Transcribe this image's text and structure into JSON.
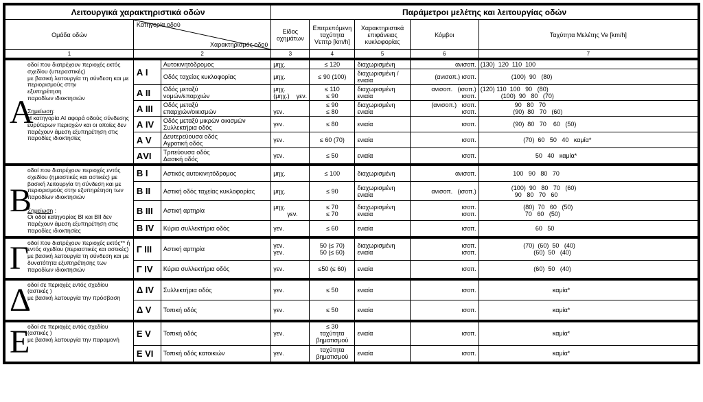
{
  "mainHeaders": {
    "left": "Λειτουργικά   χαρακτηριστικά   οδών",
    "right": "Παράμετροι   μελέτης   και   λειτουργίας   οδών"
  },
  "subHeaders": {
    "group": "Ομάδα οδών",
    "diagTop": "Κατηγορία οδού",
    "diagBot": "Χαρακτηρισμός οδού",
    "vehType": "Είδος οχημάτων",
    "maxSpeed": "Επιτρεπόμενη ταχύτητα",
    "maxSpeedSub": "Vεπτρ  [km/h]",
    "surface": "Χαρακτηριστικά επιφάνειας κυκλοφορίας",
    "nodes": "Κόμβοι",
    "designSpeed": "Ταχύτητα Μελέτης  Ve [km/h]"
  },
  "colNums": [
    "1",
    "2",
    "3",
    "4",
    "5",
    "6",
    "7"
  ],
  "groups": [
    {
      "letter": "Α",
      "desc": "οδοί που διατρέχουν περιοχές εκτός σχεδίου (υπεραστικές)<br>με βασική λειτουργία τη σύνδεση και με περιορισμούς στην<br>εξυπηρέτηση<br>παροδίων ιδιοκτησιών<br><br><u>Σημείωση</u>:<br>Η κατηγορία ΑΙ αφορά οδούς σύνδεσης ευρύτερων περιοχών και οι οποίες δεν παρέχουν άμεση εξυπηρέτηση στις παροδίες ιδιοκτησίες",
      "rows": [
        {
          "cat": "Α I",
          "char": "Αυτοκινητόδρομος",
          "v": "μηχ.",
          "sp": "≤ 120",
          "surf": "διαχωρισμένη",
          "node": "ανισοπ.",
          "speeds": "(130)  120  110  100"
        },
        {
          "cat": "",
          "char": "Οδός ταχείας κυκλοφορίας",
          "v": "μηχ.",
          "sp": "≤ 90 (100)",
          "surf": "διαχωρισμένη / ενιαία",
          "node": "(ανισοπ.)     ισοπ.",
          "speeds": "                  (100)  90   (80)"
        },
        {
          "cat": "Α II",
          "char": "Οδός μεταξύ<br>νομών/επαρχιών",
          "v": "μηχ.<br>(μηχ.)&nbsp;&nbsp;&nbsp;&nbsp;γεν.",
          "sp": "≤ 110<br>≤ 90",
          "surf": "διαχωρισμένη<br>ενιαία",
          "node": "ανισοπ.&nbsp;&nbsp;&nbsp;(ισοπ.)<br>ισοπ.",
          "speeds": "(120) 110  100   90   (80)\n            (100)  90   80   (70)",
          "tall": true
        },
        {
          "cat": "Α III",
          "char": "Οδός μεταξύ<br>επαρχιών/οικισμών",
          "v": "<br>γεν.",
          "sp": "≤ 90<br>≤ 80",
          "surf": "διαχωρισμένη<br>ενιαία",
          "node": "(ανισοπ.)&nbsp;&nbsp;&nbsp;ισοπ.<br>ισοπ.",
          "speeds": "                    90   80   70\n                   (90)  80   70   (60)",
          "tall": true
        },
        {
          "cat": "Α IV",
          "char": "Οδός μεταξύ μικρών οικισμών<br>Συλλεκτήρια οδός",
          "v": "γεν.",
          "sp": "≤ 80",
          "surf": "ενιαία",
          "node": "ισοπ.",
          "speeds": "                   (90)  80   70    60   (50)",
          "tall": true
        },
        {
          "cat": "Α V",
          "char": "Δευτερεύουσα οδός<br>Αγροτική οδός",
          "v": "γεν.",
          "sp": "≤ 60 (70)",
          "surf": "ενιαία",
          "node": "ισοπ.",
          "speeds": "                         (70)  60   50   40   καμία*",
          "tall": true
        },
        {
          "cat": "ΑVI",
          "char": "Τριτεύουσα οδός<br>Δασική οδός",
          "v": "γεν.",
          "sp": "≤ 50",
          "surf": "ενιαία",
          "node": "ισοπ.",
          "speeds": "                                50   40   καμία*",
          "tall": true
        }
      ]
    },
    {
      "letter": "Β",
      "desc": "οδοί που διατρέχουν περιοχές εντός σχεδίου (ημιαστικές και αστικές) με βασική λειτουργία τη σύνδεση και με περιορισμούς στην εξυπηρέτηση των παροδίων ιδιοκτησιών<br><br><u>Σημείωση</u> :<br>Οι οδοί κατηγορίας ΒΙ και ΒΙΙ δεν παρέχουν άμεση εξυπηρέτηση στις παροδίες ιδιοκτησίες",
      "rows": [
        {
          "cat": "Β I",
          "char": "Αστικός αυτοκινητόδρομος",
          "v": "μηχ.",
          "sp": "≤ 100",
          "surf": "διαχωρισμένη",
          "node": "ανισοπ.",
          "speeds": "                   100   90   80   70",
          "tall": true
        },
        {
          "cat": "Β II",
          "char": "Αστική οδός ταχείας κυκλοφορίας",
          "v": "μηχ.",
          "sp": "≤ 90",
          "surf": "διαχωρισμένη<br>ενιαία",
          "node": "ανισοπ.&nbsp;&nbsp;&nbsp;(ισοπ.)",
          "speeds": "                  (100)  90   80   70   (60)\n                    90   80   70   60",
          "tall": true
        },
        {
          "cat": "Β III",
          "char": "Αστική αρτηρία",
          "v": "μηχ.<br>&nbsp;&nbsp;&nbsp;&nbsp;&nbsp;&nbsp;&nbsp;&nbsp;γεν.",
          "sp": "≤ 70<br>≤ 70",
          "surf": "διαχωρισμένη<br>ενιαία",
          "node": "ισοπ.<br>ισοπ.",
          "speeds": "                         (80)  70   60   (50)\n                          70   60   (50)",
          "tall": true
        },
        {
          "cat": "Β IV",
          "char": "Κύρια συλλεκτήρια οδός",
          "v": "γεν.",
          "sp": "≤ 60",
          "surf": "ενιαία",
          "node": "ισοπ.",
          "speeds": "                                60   50",
          "tall": true
        }
      ]
    },
    {
      "letter": "Γ",
      "desc": "οδοί που διατρέχουν περιοχές εκτός** ή εντός σχεδίου (περιαστικές και αστικές)<br>με βασική λειτουργία τη σύνδεση και με δυνατότητα εξυπηρέτησης των παροδίων ιδιοκτησιών",
      "rows": [
        {
          "cat": "Γ III",
          "char": "Αστική αρτηρία",
          "v": "γεν.<br>γεν.",
          "sp": "50 (≤ 70)<br>50 (≤ 60)",
          "surf": "διαχωρισμένη<br>ενιαία",
          "node": "ισοπ.<br>ισοπ.",
          "speeds": "                         (70)  (60)  50   (40)\n                               (60)  50   (40)",
          "tall": true
        },
        {
          "cat": "Γ IV",
          "char": "Κύρια συλλεκτήρια οδός",
          "v": "γεν.",
          "sp": "≤50 (≤ 60)",
          "surf": "ενιαία",
          "node": "ισοπ.",
          "speeds": "                               (60)  50   (40)",
          "tall": true
        }
      ]
    },
    {
      "letter": "Δ",
      "desc": "οδοί σε περιοχές εντός σχεδίου (αστικές )<br>με βασική λειτουργία την πρόσβαση",
      "rows": [
        {
          "cat": "Δ IV",
          "char": "Συλλεκτήρια οδός",
          "v": "γεν.",
          "sp": "≤ 50",
          "surf": "ενιαία",
          "node": "ισοπ.",
          "speeds": "                                          καμία*",
          "tall": true
        },
        {
          "cat": "Δ V",
          "char": "Τοπική οδός",
          "v": "γεν.",
          "sp": "≤ 50",
          "surf": "ενιαία",
          "node": "ισοπ.",
          "speeds": "                                          καμία*",
          "tall": true
        }
      ]
    },
    {
      "letter": "Ε",
      "desc": "οδοί σε περιοχές εντός σχεδίου (αστικές )<br>με βασική λειτουργία την παραμονή",
      "rows": [
        {
          "cat": "Ε V",
          "char": "Τοπική οδός",
          "v": "γεν.",
          "sp": "≤ 30<br>ταχύτητα<br>βηματισμού",
          "surf": "ενιαία",
          "node": "ισοπ.",
          "speeds": "                                          καμία*",
          "tall": true
        },
        {
          "cat": "Ε VI",
          "char": "Τοπική οδός κατοικιών",
          "v": "γεν.",
          "sp": "ταχύτητα<br>βηματισμού",
          "surf": "ενιαία",
          "node": "ισοπ.",
          "speeds": "                                          καμία*",
          "tall": true
        }
      ]
    }
  ]
}
